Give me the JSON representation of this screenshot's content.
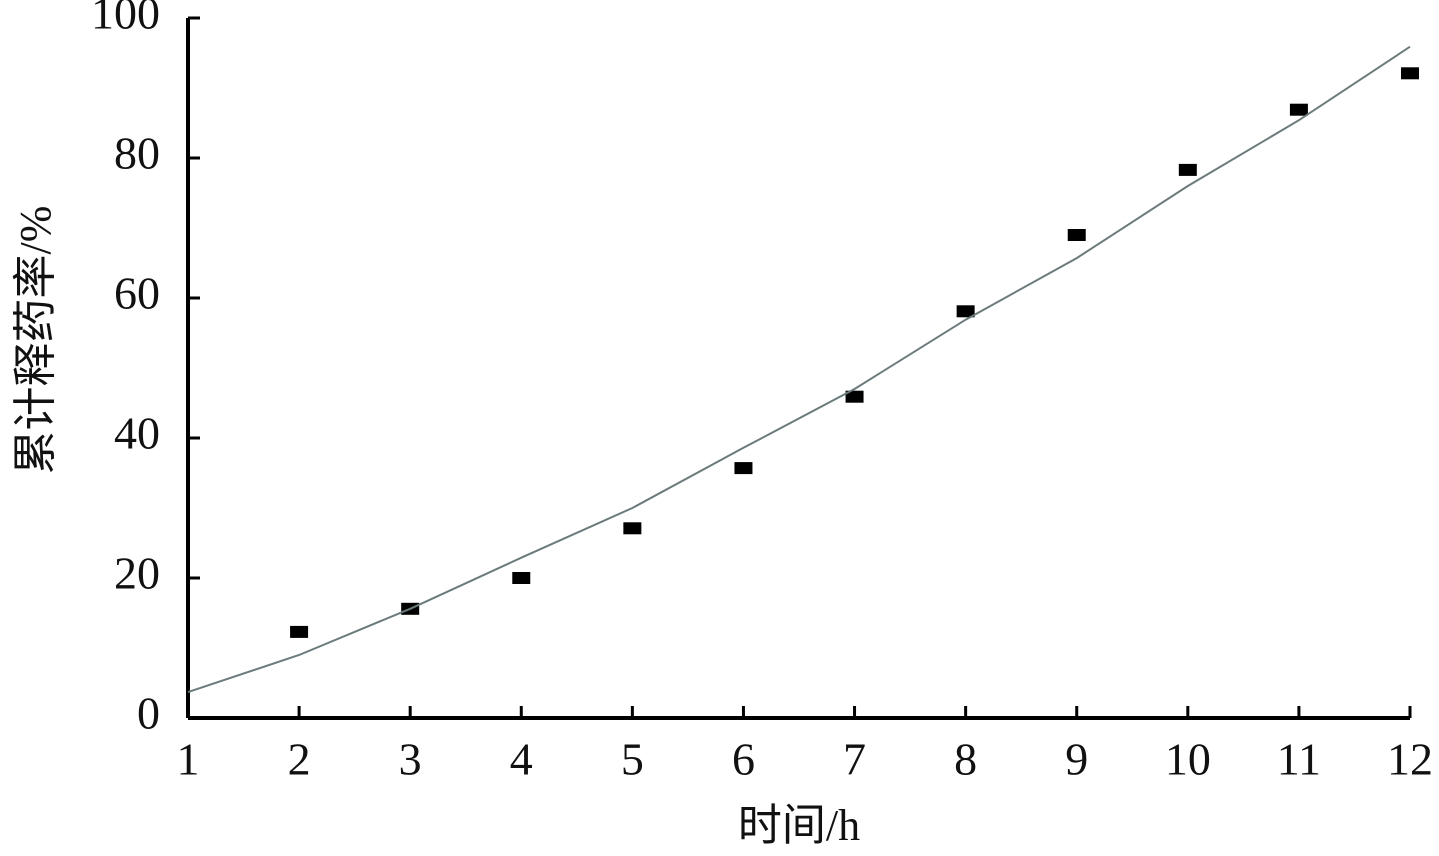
{
  "chart_data": {
    "type": "scatter",
    "x_label": "时间/h",
    "y_label": "累计释药率/%",
    "xlim": [
      1,
      12
    ],
    "xticks": [
      1,
      2,
      3,
      4,
      5,
      6,
      7,
      8,
      9,
      10,
      11,
      12
    ],
    "ylim": [
      0,
      100
    ],
    "yticks": [
      0,
      20,
      40,
      60,
      80,
      100
    ],
    "grid": false,
    "series": [
      {
        "mode": "markers",
        "color": "#000000",
        "x": [
          2,
          3,
          4,
          5,
          6,
          7,
          8,
          9,
          10,
          11,
          12
        ],
        "values": [
          12.3,
          15.6,
          20.0,
          27.1,
          35.7,
          45.9,
          58.1,
          69.0,
          78.3,
          86.9,
          92.1
        ]
      },
      {
        "mode": "line",
        "color": "#6b7b7b",
        "x": [
          1,
          2,
          3,
          4,
          5,
          6,
          7,
          8,
          9,
          10,
          11,
          12
        ],
        "values": [
          3.7,
          9.0,
          15.6,
          22.9,
          30.0,
          38.6,
          47.0,
          56.9,
          65.7,
          76.0,
          85.4,
          95.9
        ]
      }
    ]
  }
}
